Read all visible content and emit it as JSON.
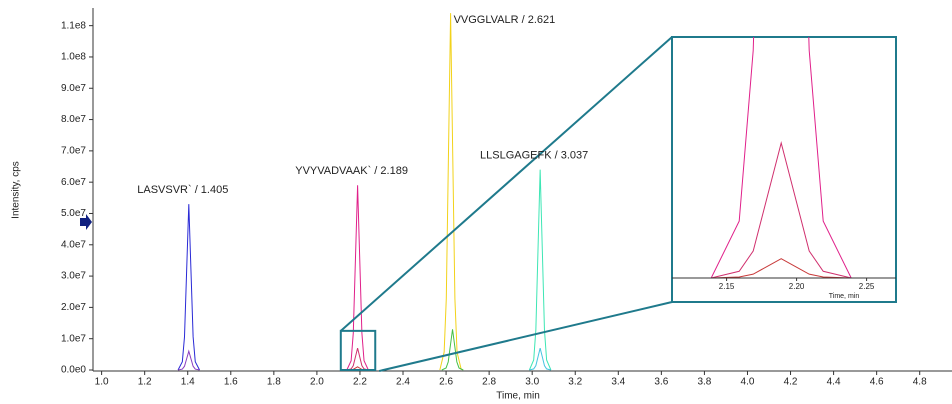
{
  "chart_data": {
    "type": "line",
    "xlabel": "Time, min",
    "ylabel": "Intensity, cps",
    "xlim": [
      0.96,
      4.95
    ],
    "ylim": [
      0,
      115000000
    ],
    "xticks": [
      {
        "value": 1,
        "label": "1.0"
      },
      1.2,
      1.4,
      1.6,
      1.8,
      {
        "value": 2,
        "label": "2.0"
      },
      2.2,
      2.4,
      2.6,
      2.8,
      {
        "value": 3,
        "label": "3.0"
      },
      3.2,
      3.4,
      3.6,
      3.8,
      {
        "value": 4,
        "label": "4.0"
      },
      4.2,
      4.4,
      4.6,
      4.8
    ],
    "yticks": [
      {
        "value": 0,
        "label": "0.0e0"
      },
      {
        "value": 10000000,
        "label": "1.0e7"
      },
      {
        "value": 20000000,
        "label": "2.0e7"
      },
      {
        "value": 30000000,
        "label": "3.0e7"
      },
      {
        "value": 40000000,
        "label": "4.0e7"
      },
      {
        "value": 50000000,
        "label": "5.0e7"
      },
      {
        "value": 60000000,
        "label": "6.0e7"
      },
      {
        "value": 70000000,
        "label": "7.0e7"
      },
      {
        "value": 80000000,
        "label": "8.0e7"
      },
      {
        "value": 90000000,
        "label": "9.0e7"
      },
      {
        "value": 100000000,
        "label": "1.0e8"
      },
      {
        "value": 110000000,
        "label": "1.1e8"
      }
    ],
    "series": [
      {
        "color": "#2a2ad6",
        "label": "LASVSVR` / 1.405",
        "x": [
          1.355,
          1.375,
          1.385,
          1.395,
          1.405,
          1.415,
          1.425,
          1.435,
          1.455
        ],
        "values": [
          0,
          2650000,
          10600000,
          31800000,
          53000000,
          31800000,
          10600000,
          2650000,
          0
        ]
      },
      {
        "color": "#8a3cc0",
        "x": [
          1.355,
          1.375,
          1.385,
          1.395,
          1.405,
          1.415,
          1.425,
          1.435,
          1.455
        ],
        "values": [
          0,
          300000,
          1200000,
          3600000,
          6000000,
          3600000,
          1200000,
          300000,
          0
        ]
      },
      {
        "color": "#e0208a",
        "label": "YVYVADVAAK` / 2.189",
        "x": [
          2.139,
          2.159,
          2.169,
          2.179,
          2.189,
          2.199,
          2.209,
          2.219,
          2.239
        ],
        "values": [
          0,
          2950000,
          11800000,
          35400000,
          59000000,
          35400000,
          11800000,
          2950000,
          0
        ]
      },
      {
        "color": "#d0306e",
        "x": [
          2.139,
          2.159,
          2.169,
          2.179,
          2.189,
          2.199,
          2.209,
          2.219,
          2.239
        ],
        "values": [
          0,
          350000,
          1400000,
          4200000,
          7000000,
          4200000,
          1400000,
          350000,
          0
        ]
      },
      {
        "color": "#c83a3a",
        "x": [
          2.139,
          2.159,
          2.169,
          2.179,
          2.189,
          2.199,
          2.209,
          2.219,
          2.239
        ],
        "values": [
          0,
          50000,
          200000,
          600000,
          1000000,
          600000,
          200000,
          50000,
          0
        ]
      },
      {
        "color": "#f2d21a",
        "label": "VVGGLVALR / 2.621",
        "x": [
          2.571,
          2.591,
          2.601,
          2.611,
          2.621,
          2.631,
          2.641,
          2.651,
          2.671
        ],
        "values": [
          0,
          5700000,
          22800000,
          68400000,
          114000000,
          68400000,
          22800000,
          5700000,
          0
        ]
      },
      {
        "color": "#46c046",
        "x": [
          2.58,
          2.6,
          2.61,
          2.62,
          2.63,
          2.64,
          2.65,
          2.66,
          2.68
        ],
        "values": [
          0,
          650000,
          2600000,
          7800000,
          13000000,
          7800000,
          2600000,
          650000,
          0
        ]
      },
      {
        "color": "#3de6b4",
        "label": "LLSLGAGEFK / 3.037",
        "x": [
          2.987,
          3.007,
          3.017,
          3.027,
          3.037,
          3.047,
          3.057,
          3.067,
          3.087
        ],
        "values": [
          0,
          3200000,
          12800000,
          38400000,
          64000000,
          38400000,
          12800000,
          3200000,
          0
        ]
      },
      {
        "color": "#44c4e0",
        "x": [
          2.987,
          3.007,
          3.017,
          3.027,
          3.037,
          3.047,
          3.057,
          3.067,
          3.087
        ],
        "values": [
          0,
          350000,
          1400000,
          4200000,
          7000000,
          4200000,
          1400000,
          350000,
          0
        ]
      }
    ],
    "inset": {
      "xlim": [
        2.111,
        2.271
      ],
      "ylim": [
        0,
        12500000
      ],
      "xticks": [
        2.15,
        {
          "value": 2.2,
          "label": "2.20"
        },
        2.25
      ],
      "xlabel": "Time, min"
    }
  }
}
